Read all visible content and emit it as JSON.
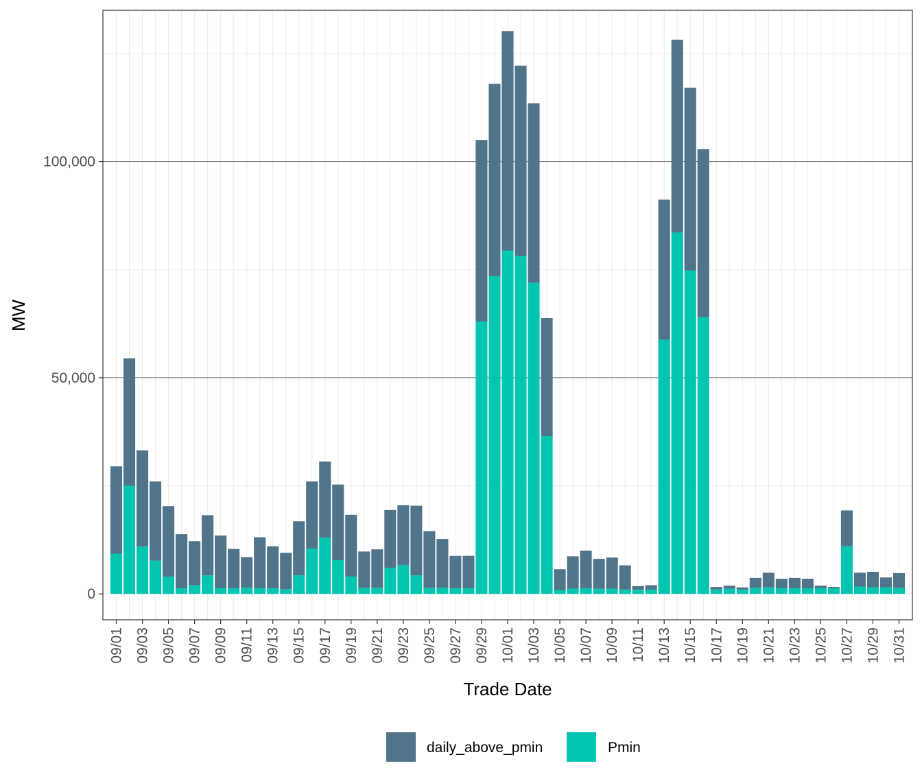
{
  "chart_data": {
    "type": "bar",
    "stacked": true,
    "title": "",
    "xlabel": "Trade Date",
    "ylabel": "MW",
    "ylim": [
      -6000,
      135000
    ],
    "y_ticks": [
      0,
      50000,
      100000
    ],
    "y_tick_labels": [
      "0",
      "50,000",
      "100,000"
    ],
    "categories": [
      "09/01",
      "09/02",
      "09/03",
      "09/04",
      "09/05",
      "09/06",
      "09/07",
      "09/08",
      "09/09",
      "09/10",
      "09/11",
      "09/12",
      "09/13",
      "09/14",
      "09/15",
      "09/16",
      "09/17",
      "09/18",
      "09/19",
      "09/20",
      "09/21",
      "09/22",
      "09/23",
      "09/24",
      "09/25",
      "09/26",
      "09/27",
      "09/28",
      "09/29",
      "09/30",
      "10/01",
      "10/02",
      "10/03",
      "10/04",
      "10/05",
      "10/06",
      "10/07",
      "10/08",
      "10/09",
      "10/10",
      "10/11",
      "10/12",
      "10/13",
      "10/14",
      "10/15",
      "10/16",
      "10/17",
      "10/18",
      "10/19",
      "10/20",
      "10/21",
      "10/22",
      "10/23",
      "10/24",
      "10/25",
      "10/26",
      "10/27",
      "10/28",
      "10/29",
      "10/30",
      "10/31"
    ],
    "x_tick_labels": [
      "09/01",
      "09/03",
      "09/05",
      "09/07",
      "09/09",
      "09/11",
      "09/13",
      "09/15",
      "09/17",
      "09/19",
      "09/21",
      "09/23",
      "09/25",
      "09/27",
      "09/29",
      "10/01",
      "10/03",
      "10/05",
      "10/07",
      "10/09",
      "10/11",
      "10/13",
      "10/15",
      "10/17",
      "10/19",
      "10/21",
      "10/23",
      "10/25",
      "10/27",
      "10/29",
      "10/31"
    ],
    "series": [
      {
        "name": "Pmin",
        "color": "#00C5B0",
        "values": [
          9300,
          25000,
          11000,
          7700,
          4000,
          1300,
          2000,
          4300,
          1300,
          1300,
          1400,
          1300,
          1300,
          1100,
          4300,
          10500,
          13000,
          7800,
          4000,
          1400,
          1400,
          6000,
          6700,
          4300,
          1400,
          1400,
          1300,
          1300,
          63000,
          73500,
          79400,
          78200,
          72000,
          36500,
          900,
          1200,
          1300,
          1200,
          1200,
          1000,
          1000,
          1000,
          58800,
          83600,
          74800,
          64000,
          1000,
          1200,
          1000,
          1400,
          1500,
          1300,
          1300,
          1300,
          1300,
          1300,
          11000,
          1700,
          1500,
          1500,
          1400
        ]
      },
      {
        "name": "daily_above_pmin",
        "color": "#507489",
        "values": [
          20200,
          29500,
          22200,
          18300,
          16300,
          12500,
          10200,
          13900,
          12200,
          9100,
          7100,
          11800,
          9700,
          8400,
          12500,
          15500,
          17600,
          17500,
          14300,
          8400,
          8900,
          13400,
          13800,
          16100,
          13100,
          11300,
          7500,
          7500,
          42000,
          44500,
          50800,
          44000,
          41500,
          27300,
          4800,
          7500,
          8700,
          6900,
          7200,
          5600,
          800,
          1000,
          32400,
          44600,
          42300,
          38900,
          600,
          700,
          500,
          2300,
          3400,
          2200,
          2400,
          2200,
          600,
          300,
          8300,
          3200,
          3600,
          2300,
          3400
        ]
      }
    ],
    "legend": {
      "position": "bottom",
      "entries": [
        {
          "label": "daily_above_pmin",
          "color": "#507489"
        },
        {
          "label": "Pmin",
          "color": "#00C5B0"
        }
      ]
    },
    "grid": true
  }
}
